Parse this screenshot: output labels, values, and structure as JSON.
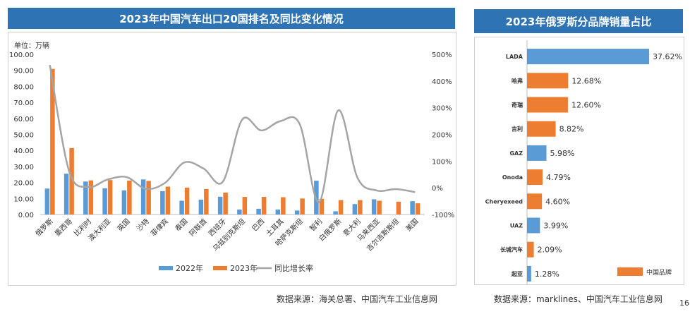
{
  "left": {
    "title": "2023年中国汽车出口20国排名及同比变化情况",
    "source": "数据来源：海关总署、中国汽车工业信息网"
  },
  "right": {
    "title": "2023年俄罗斯分品牌销量占比",
    "source": "数据来源：marklines、中国汽车工业信息网"
  },
  "page_number": "16",
  "colors": {
    "title_bg": "#2e74b5",
    "series_2022": "#5b9bd5",
    "series_2023": "#ed7d31",
    "growth_line": "#a5a5a5",
    "lada_bar": "#5b9bd5",
    "gaz_uaz_bar": "#5b9bd5"
  },
  "chart_data": [
    {
      "type": "bar",
      "unit_label": "单位：万辆",
      "categories": [
        "俄罗斯",
        "墨西哥",
        "比利时",
        "澳大利亚",
        "英国",
        "沙特",
        "菲律宾",
        "泰国",
        "阿联酋",
        "西班牙",
        "乌兹别克斯坦",
        "巴西",
        "土耳其",
        "哈萨克斯坦",
        "智利",
        "白俄罗斯",
        "意大利",
        "马来西亚",
        "吉尔吉斯斯坦",
        "美国"
      ],
      "series": [
        {
          "name": "2022年",
          "values": [
            16.2,
            25.5,
            20.6,
            16.4,
            15.1,
            21.9,
            14.6,
            8.6,
            9.3,
            11.1,
            3.1,
            3.6,
            3.1,
            2.5,
            21.1,
            2.0,
            6.5,
            9.5,
            0,
            8.3
          ]
        },
        {
          "name": "2023年",
          "values": [
            90.9,
            41.5,
            21.3,
            21.5,
            21.2,
            21.0,
            17.4,
            16.8,
            15.9,
            13.7,
            11.0,
            11.0,
            10.8,
            10.0,
            9.8,
            9.0,
            9.0,
            8.6,
            8.0,
            7.0
          ]
        },
        {
          "name": "同比增长率",
          "axis": "right",
          "values": [
            460,
            63,
            3,
            31,
            40,
            -4,
            19,
            95,
            72,
            23,
            255,
            215,
            250,
            238,
            -54,
            290,
            38,
            -10,
            -5,
            -16
          ]
        }
      ],
      "ylim": [
        0,
        100
      ],
      "y_ticks": [
        "0.00",
        "10.00",
        "20.00",
        "30.00",
        "40.00",
        "50.00",
        "60.00",
        "70.00",
        "80.00",
        "90.00",
        "100.00"
      ],
      "y2lim": [
        -100,
        500
      ],
      "y2_ticks": [
        "-100%",
        "0%",
        "100%",
        "200%",
        "300%",
        "400%",
        "500%"
      ],
      "legend_position": "bottom",
      "grid": false
    },
    {
      "type": "bar",
      "orientation": "horizontal",
      "categories": [
        "LADA",
        "哈弗",
        "奇瑞",
        "吉利",
        "GAZ",
        "Onoda",
        "Cheryexeed",
        "UAZ",
        "长城汽车",
        "起亚"
      ],
      "values": [
        37.62,
        12.68,
        12.6,
        8.82,
        5.98,
        4.79,
        4.6,
        3.99,
        2.09,
        1.28
      ],
      "value_labels": [
        "37.62%",
        "12.68%",
        "12.60%",
        "8.82%",
        "5.98%",
        "4.79%",
        "4.60%",
        "3.99%",
        "2.09%",
        "1.28%"
      ],
      "bar_colors": [
        "#5b9bd5",
        "#ed7d31",
        "#ed7d31",
        "#ed7d31",
        "#5b9bd5",
        "#ed7d31",
        "#ed7d31",
        "#5b9bd5",
        "#ed7d31",
        "#5b9bd5"
      ],
      "legend": [
        "中国品牌"
      ],
      "legend_position": "bottom-right",
      "xlim": [
        0,
        40
      ]
    }
  ]
}
